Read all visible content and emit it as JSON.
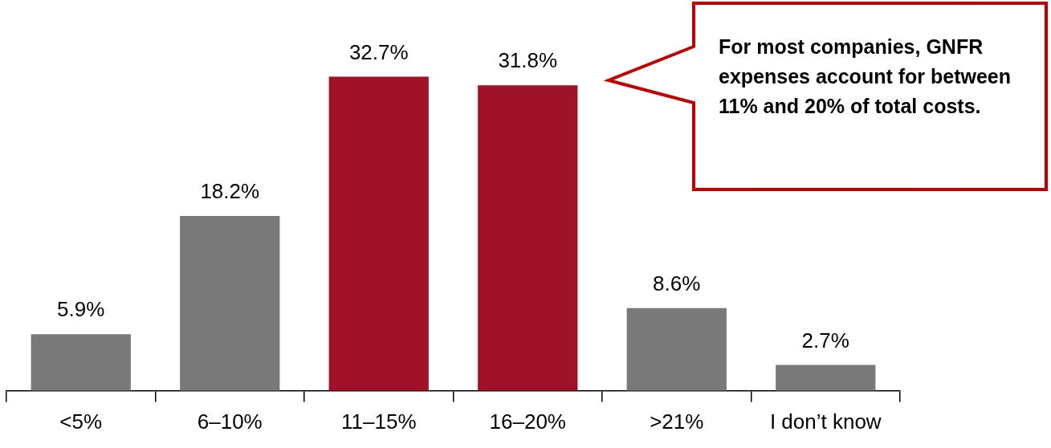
{
  "chart_data": {
    "type": "bar",
    "categories": [
      "<5%",
      "6–10%",
      "11–15%",
      "16–20%",
      ">21%",
      "I don’t know"
    ],
    "values": [
      5.9,
      18.2,
      32.7,
      31.8,
      8.6,
      2.7
    ],
    "value_labels": [
      "5.9%",
      "18.2%",
      "32.7%",
      "31.8%",
      "8.6%",
      "2.7%"
    ],
    "colors": [
      "#797979",
      "#797979",
      "#a01228",
      "#a01228",
      "#797979",
      "#797979"
    ],
    "ylim": [
      0,
      40
    ],
    "grid": false,
    "data_labels": true,
    "tick_labels": "x",
    "annotation": "For most companies, GNFR expenses account for between 11% and 20% of total costs."
  }
}
